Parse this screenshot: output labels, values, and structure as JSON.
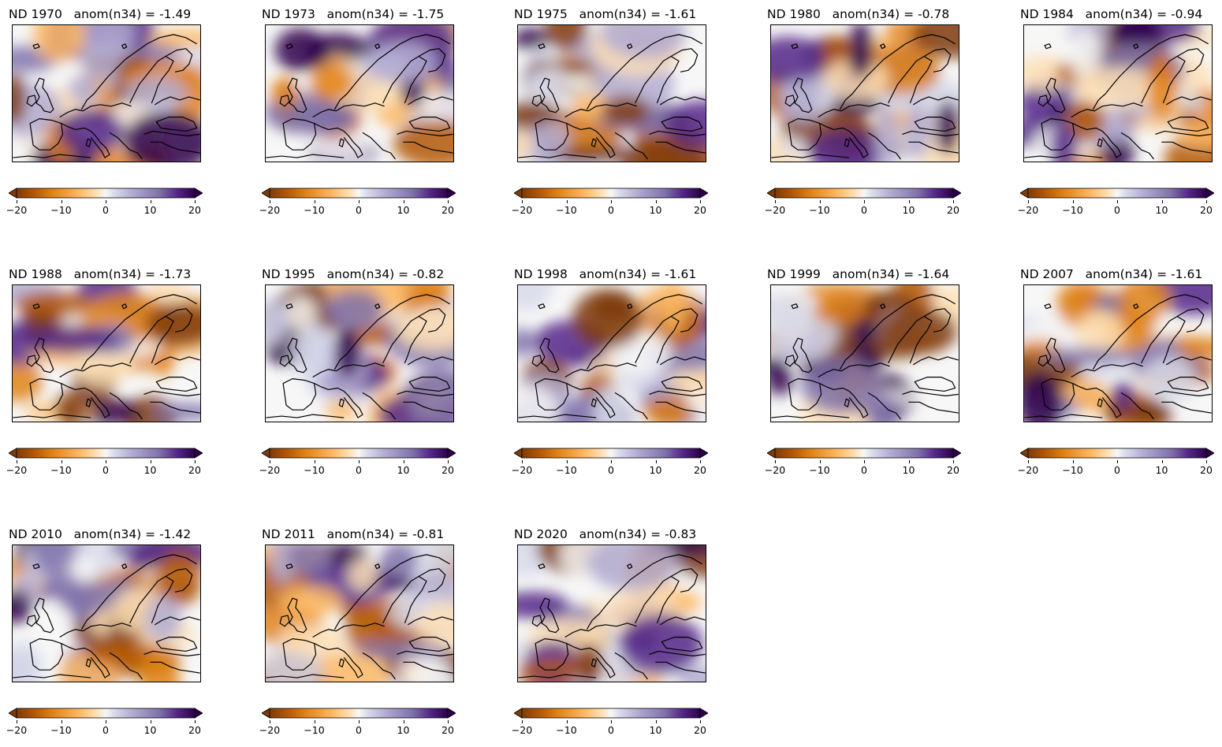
{
  "colorbar": {
    "ticks": [
      {
        "value": -20,
        "label": "−20"
      },
      {
        "value": -10,
        "label": "−10"
      },
      {
        "value": 0,
        "label": "0"
      },
      {
        "value": 10,
        "label": "10"
      },
      {
        "value": 20,
        "label": "20"
      }
    ],
    "range": [
      -20,
      20
    ],
    "extend": "both",
    "colors": [
      "#7f3b08",
      "#b35806",
      "#e08214",
      "#fdb863",
      "#fee0b6",
      "#f7f7f7",
      "#d8daeb",
      "#b2abd2",
      "#8073ac",
      "#542788",
      "#2d004b"
    ]
  },
  "panels": [
    {
      "label": "ND 1970   anom(n34) = -1.49"
    },
    {
      "label": "ND 1973   anom(n34) = -1.75"
    },
    {
      "label": "ND 1975   anom(n34) = -1.61"
    },
    {
      "label": "ND 1980   anom(n34) = -0.78"
    },
    {
      "label": "ND 1984   anom(n34) = -0.94"
    },
    {
      "label": "ND 1988   anom(n34) = -1.73"
    },
    {
      "label": "ND 1995   anom(n34) = -0.82"
    },
    {
      "label": "ND 1998   anom(n34) = -1.61"
    },
    {
      "label": "ND 1999   anom(n34) = -1.64"
    },
    {
      "label": "ND 2007   anom(n34) = -1.61"
    },
    {
      "label": "ND 2010   anom(n34) = -1.42"
    },
    {
      "label": "ND 2011   anom(n34) = -0.81"
    },
    {
      "label": "ND 2020   anom(n34) = -0.83"
    }
  ]
}
